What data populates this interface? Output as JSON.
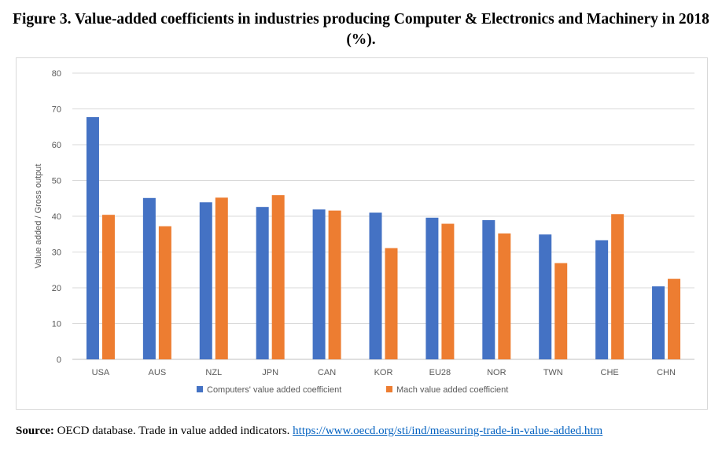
{
  "title": "Figure 3. Value-added coefficients in industries producing Computer & Electronics and Machinery in 2018 (%).",
  "source": {
    "label": "Source:",
    "text": " OECD database. Trade in value added indicators. ",
    "link": "https://www.oecd.org/sti/ind/measuring-trade-in-value-added.htm"
  },
  "chart_data": {
    "type": "bar",
    "title": "",
    "xlabel": "",
    "ylabel": "Value added / Gross output",
    "ylim": [
      0,
      80
    ],
    "yticks": [
      0,
      10,
      20,
      30,
      40,
      50,
      60,
      70,
      80
    ],
    "grid": true,
    "legend_position": "bottom",
    "categories": [
      "USA",
      "AUS",
      "NZL",
      "JPN",
      "CAN",
      "KOR",
      "EU28",
      "NOR",
      "TWN",
      "CHE",
      "CHN"
    ],
    "series": [
      {
        "name": "Computers' value added coefficient",
        "color": "#4472c4",
        "values": [
          67.7,
          45.1,
          43.9,
          42.6,
          41.9,
          41.0,
          39.6,
          38.9,
          34.9,
          33.3,
          20.4
        ]
      },
      {
        "name": "Mach value added coefficient",
        "color": "#ed7d31",
        "values": [
          40.4,
          37.2,
          45.2,
          45.9,
          41.6,
          31.1,
          37.9,
          35.2,
          26.9,
          40.6,
          22.5
        ]
      }
    ]
  }
}
